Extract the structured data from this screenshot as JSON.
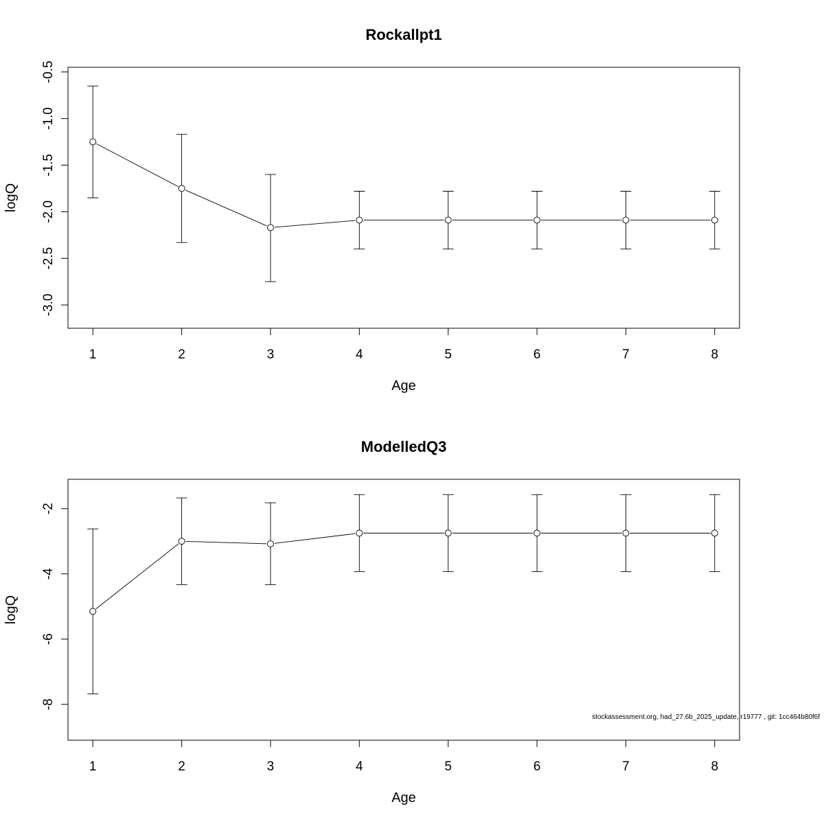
{
  "chart_data": [
    {
      "type": "line",
      "title": "Rockallpt1",
      "xlabel": "Age",
      "ylabel": "logQ",
      "xlim": [
        0.72,
        8.28
      ],
      "ylim": [
        -3.25,
        -0.45
      ],
      "x_ticks": [
        "1",
        "2",
        "3",
        "4",
        "5",
        "6",
        "7",
        "8"
      ],
      "y_ticks": [
        "-3.0",
        "-2.5",
        "-2.0",
        "-1.5",
        "-1.0",
        "-0.5"
      ],
      "grid": false,
      "series": [
        {
          "x": [
            1,
            2,
            3,
            4,
            5,
            6,
            7,
            8
          ],
          "values": [
            -1.25,
            -1.75,
            -2.17,
            -2.09,
            -2.09,
            -2.09,
            -2.09,
            -2.09
          ],
          "lower": [
            -1.85,
            -2.33,
            -2.75,
            -2.4,
            -2.4,
            -2.4,
            -2.4,
            -2.4
          ],
          "upper": [
            -0.65,
            -1.17,
            -1.6,
            -1.78,
            -1.78,
            -1.78,
            -1.78,
            -1.78
          ]
        }
      ]
    },
    {
      "type": "line",
      "title": "ModelledQ3",
      "xlabel": "Age",
      "ylabel": "logQ",
      "xlim": [
        0.72,
        8.28
      ],
      "ylim": [
        -9.1,
        -1.1
      ],
      "x_ticks": [
        "1",
        "2",
        "3",
        "4",
        "5",
        "6",
        "7",
        "8"
      ],
      "y_ticks": [
        "-8",
        "-6",
        "-4",
        "-2"
      ],
      "grid": false,
      "series": [
        {
          "x": [
            1,
            2,
            3,
            4,
            5,
            6,
            7,
            8
          ],
          "values": [
            -5.15,
            -3.0,
            -3.08,
            -2.75,
            -2.75,
            -2.75,
            -2.75,
            -2.75
          ],
          "lower": [
            -7.68,
            -4.33,
            -4.33,
            -3.93,
            -3.93,
            -3.93,
            -3.93,
            -3.93
          ],
          "upper": [
            -2.62,
            -1.67,
            -1.82,
            -1.57,
            -1.57,
            -1.57,
            -1.57,
            -1.57
          ]
        }
      ]
    }
  ],
  "footnote": "stockassessment.org, had_27.6b_2025_update, r19777 , git: 1cc464b80f6f"
}
